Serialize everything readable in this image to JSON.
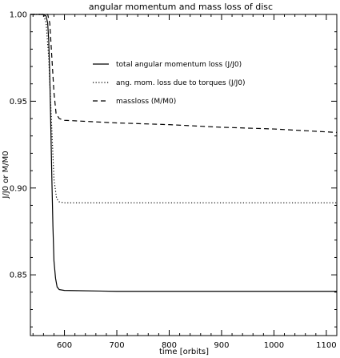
{
  "chart_data": {
    "type": "line",
    "title": "angular momentum and mass loss of disc",
    "xlabel": "time [orbits]",
    "ylabel": "J/J0 or M/M0",
    "xlim": [
      535,
      1120
    ],
    "ylim": [
      0.815,
      1.0
    ],
    "x_ticks": [
      600,
      700,
      800,
      900,
      1000,
      1100
    ],
    "x_tick_labels": [
      "600",
      "700",
      "800",
      "900",
      "1000",
      "1100"
    ],
    "y_ticks": [
      0.85,
      0.9,
      0.95,
      1.0
    ],
    "y_tick_labels": [
      "0.85",
      "0.90",
      "0.95",
      "1.00"
    ],
    "grid": false,
    "legend_position": "upper-middle",
    "series": [
      {
        "name": "total angular momentum loss (J/J0)",
        "style": "solid",
        "x": [
          535,
          560,
          565,
          568,
          570,
          572,
          574,
          576,
          578,
          580,
          583,
          586,
          590,
          600,
          700,
          800,
          900,
          1000,
          1120
        ],
        "y": [
          1.0,
          1.0,
          0.999,
          0.995,
          0.985,
          0.965,
          0.935,
          0.905,
          0.878,
          0.858,
          0.848,
          0.843,
          0.8415,
          0.841,
          0.8405,
          0.8405,
          0.8405,
          0.8405,
          0.8405
        ]
      },
      {
        "name": "ang. mom. loss due to torques (J/J0)",
        "style": "dotted",
        "x": [
          535,
          560,
          565,
          570,
          575,
          580,
          585,
          590,
          600,
          700,
          800,
          900,
          1000,
          1120
        ],
        "y": [
          1.0,
          1.0,
          0.995,
          0.975,
          0.94,
          0.905,
          0.894,
          0.892,
          0.8915,
          0.8915,
          0.8915,
          0.8915,
          0.8915,
          0.8915
        ]
      },
      {
        "name": "massloss (M/M0)",
        "style": "dashed",
        "x": [
          535,
          568,
          572,
          576,
          580,
          584,
          590,
          600,
          700,
          800,
          900,
          1000,
          1120
        ],
        "y": [
          1.0,
          1.0,
          0.995,
          0.975,
          0.955,
          0.943,
          0.94,
          0.939,
          0.9375,
          0.9365,
          0.935,
          0.934,
          0.932
        ]
      }
    ]
  }
}
